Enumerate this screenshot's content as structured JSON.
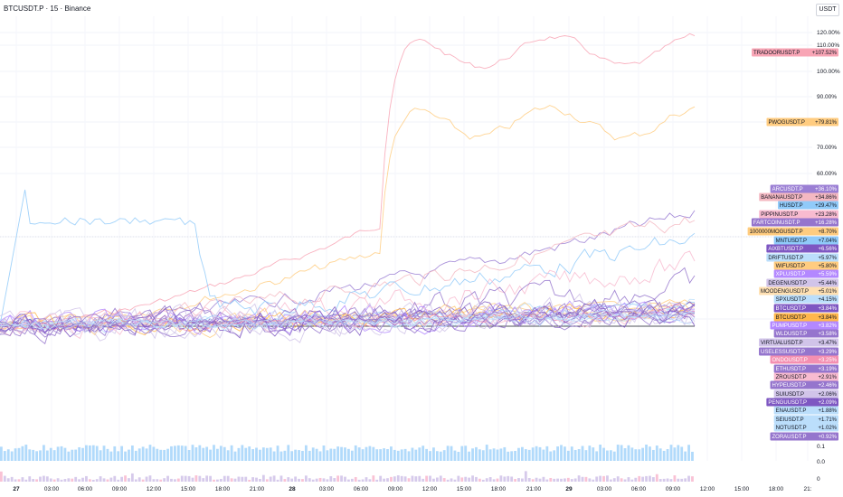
{
  "header": {
    "title": "BTCUSDT.P · 15 · Binance",
    "currency_button": "USDT"
  },
  "chart_data": {
    "type": "line",
    "ylabel_unit": "%",
    "y_ticks": [
      "120.00%",
      "110.00%",
      "100.00%",
      "90.00%",
      "80.00%",
      "70.00%",
      "60.00%",
      "0.1",
      "0.0",
      "0"
    ],
    "x_ticks": [
      "27",
      "03:00",
      "06:00",
      "09:00",
      "12:00",
      "15:00",
      "18:00",
      "21:00",
      "28",
      "03:00",
      "06:00",
      "09:00",
      "12:00",
      "15:00",
      "18:00",
      "21:00",
      "29",
      "03:00",
      "06:00",
      "09:00",
      "12:00",
      "15:00",
      "18:00",
      "21:"
    ],
    "series": [
      {
        "name": "TRADOORUSDT.P",
        "value": "+107.52%",
        "pct": 107.52,
        "color": "#f8a5b5",
        "text": "#131722"
      },
      {
        "name": "PWOGUSDT.P",
        "value": "+79.81%",
        "pct": 79.81,
        "color": "#ffcc80",
        "text": "#131722"
      },
      {
        "name": "ARCUSDT.P",
        "value": "+36.10%",
        "pct": 36.1,
        "color": "#9b7fd4",
        "text": "#ffffff"
      },
      {
        "name": "BANANAUSDT.P",
        "value": "+34.86%",
        "pct": 34.86,
        "color": "#f4b8c2",
        "text": "#131722"
      },
      {
        "name": "HUSDT.P",
        "value": "+29.47%",
        "pct": 29.47,
        "color": "#90caf9",
        "text": "#131722"
      },
      {
        "name": "PIPPINUSDT.P",
        "value": "+23.28%",
        "pct": 23.28,
        "color": "#f8bbd0",
        "text": "#131722"
      },
      {
        "name": "FARTCOINUSDT.P",
        "value": "+16.28%",
        "pct": 16.28,
        "color": "#9575cd",
        "text": "#ffffff"
      },
      {
        "name": "1000000MOGUSDT.P",
        "value": "+8.70%",
        "pct": 8.7,
        "color": "#ffcc80",
        "text": "#131722"
      },
      {
        "name": "MNTUSDT.P",
        "value": "+7.04%",
        "pct": 7.04,
        "color": "#90caf9",
        "text": "#131722"
      },
      {
        "name": "AIXBTUSDT.P",
        "value": "+6.56%",
        "pct": 6.56,
        "color": "#7e57c2",
        "text": "#ffffff"
      },
      {
        "name": "DRIFTUSDT.P",
        "value": "+5.97%",
        "pct": 5.97,
        "color": "#bbdefb",
        "text": "#131722"
      },
      {
        "name": "WIFUSDT.P",
        "value": "+5.80%",
        "pct": 5.8,
        "color": "#ffcc80",
        "text": "#131722"
      },
      {
        "name": "XPLUSDT.P",
        "value": "+5.59%",
        "pct": 5.59,
        "color": "#b388ff",
        "text": "#ffffff"
      },
      {
        "name": "DEGENUSDT.P",
        "value": "+5.44%",
        "pct": 5.44,
        "color": "#d1c4e9",
        "text": "#131722"
      },
      {
        "name": "MOODENGUSDT.P",
        "value": "+5.01%",
        "pct": 5.01,
        "color": "#ffe0b2",
        "text": "#131722"
      },
      {
        "name": "SPXUSDT.P",
        "value": "+4.15%",
        "pct": 4.15,
        "color": "#bbdefb",
        "text": "#131722"
      },
      {
        "name": "BTCUSDT.P",
        "value": "+3.84%",
        "pct": 3.84,
        "color": "#7e57c2",
        "text": "#ffffff"
      },
      {
        "name": "BTCUSDT.P",
        "value": "+3.84%",
        "pct": 3.84,
        "color": "#ffb74d",
        "text": "#131722"
      },
      {
        "name": "PUMPUSDT.P",
        "value": "+3.82%",
        "pct": 3.82,
        "color": "#b388ff",
        "text": "#ffffff"
      },
      {
        "name": "WLDUSDT.P",
        "value": "+3.58%",
        "pct": 3.58,
        "color": "#9575cd",
        "text": "#ffffff"
      },
      {
        "name": "VIRTUALUSDT.P",
        "value": "+3.47%",
        "pct": 3.47,
        "color": "#d1c4e9",
        "text": "#131722"
      },
      {
        "name": "USELESSUSDT.P",
        "value": "+3.29%",
        "pct": 3.29,
        "color": "#9575cd",
        "text": "#ffffff"
      },
      {
        "name": "ONDOUSDT.P",
        "value": "+3.25%",
        "pct": 3.25,
        "color": "#f48fb1",
        "text": "#ffffff"
      },
      {
        "name": "ETHUSDT.P",
        "value": "+3.19%",
        "pct": 3.19,
        "color": "#9575cd",
        "text": "#ffffff"
      },
      {
        "name": "ZROUSDT.P",
        "value": "+2.91%",
        "pct": 2.91,
        "color": "#f8bbd0",
        "text": "#131722"
      },
      {
        "name": "HYPEUSDT.P",
        "value": "+2.46%",
        "pct": 2.46,
        "color": "#9575cd",
        "text": "#ffffff"
      },
      {
        "name": "SUIUSDT.P",
        "value": "+2.06%",
        "pct": 2.06,
        "color": "#d1c4e9",
        "text": "#131722"
      },
      {
        "name": "PENGUUSDT.P",
        "value": "+2.09%",
        "pct": 2.09,
        "color": "#7e57c2",
        "text": "#ffffff"
      },
      {
        "name": "ENAUSDT.P",
        "value": "+1.88%",
        "pct": 1.88,
        "color": "#bbdefb",
        "text": "#131722"
      },
      {
        "name": "SEIUSDT.P",
        "value": "+1.71%",
        "pct": 1.71,
        "color": "#bbdefb",
        "text": "#131722"
      },
      {
        "name": "NOTUSDT.P",
        "value": "+1.02%",
        "pct": 1.02,
        "color": "#bbdefb",
        "text": "#131722"
      },
      {
        "name": "ZORAUSDT.P",
        "value": "+0.92%",
        "pct": 0.92,
        "color": "#9575cd",
        "text": "#ffffff"
      }
    ],
    "grid": true,
    "legend": "right"
  }
}
